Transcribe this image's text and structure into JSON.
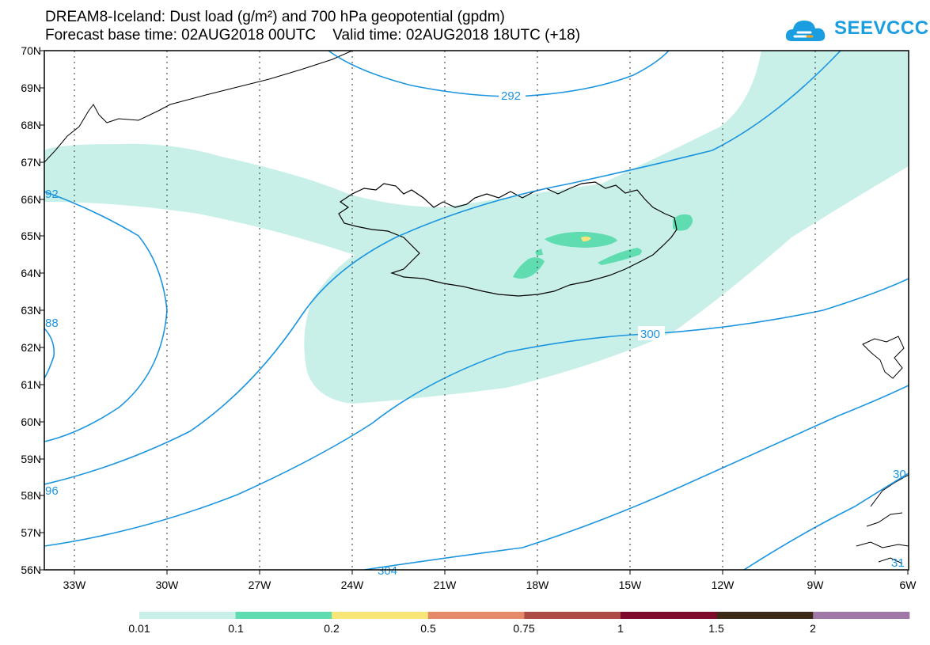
{
  "title": {
    "line1": "DREAM8-Iceland: Dust load (g/m²) and 700 hPa geopotential (gpdm)",
    "line2": "Forecast base time: 02AUG2018 00UTC    Valid time: 02AUG2018 18UTC (+18)"
  },
  "logo": {
    "text": "SEEVCCC",
    "color": "#1b9ee0",
    "icon": "cloud-icon"
  },
  "map": {
    "latitudes": [
      "70N",
      "69N",
      "68N",
      "67N",
      "66N",
      "65N",
      "64N",
      "63N",
      "62N",
      "61N",
      "60N",
      "59N",
      "58N",
      "57N",
      "56N"
    ],
    "longitudes": [
      "33W",
      "30W",
      "27W",
      "24W",
      "21W",
      "18W",
      "15W",
      "12W",
      "9W",
      "6W"
    ],
    "contour_color": "#1c95e0",
    "contour_labels": [
      "292",
      "300",
      "92",
      "88",
      "96",
      "304",
      "30",
      "31"
    ]
  },
  "colorbar": {
    "colors": [
      "#c8f0e8",
      "#5fdcb0",
      "#f8e678",
      "#e48a68",
      "#ad4c45",
      "#7d0a2a",
      "#3d2a16",
      "#a078a8"
    ],
    "labels": [
      "0.01",
      "0.1",
      "0.2",
      "0.5",
      "0.75",
      "1",
      "1.5",
      "2"
    ]
  }
}
